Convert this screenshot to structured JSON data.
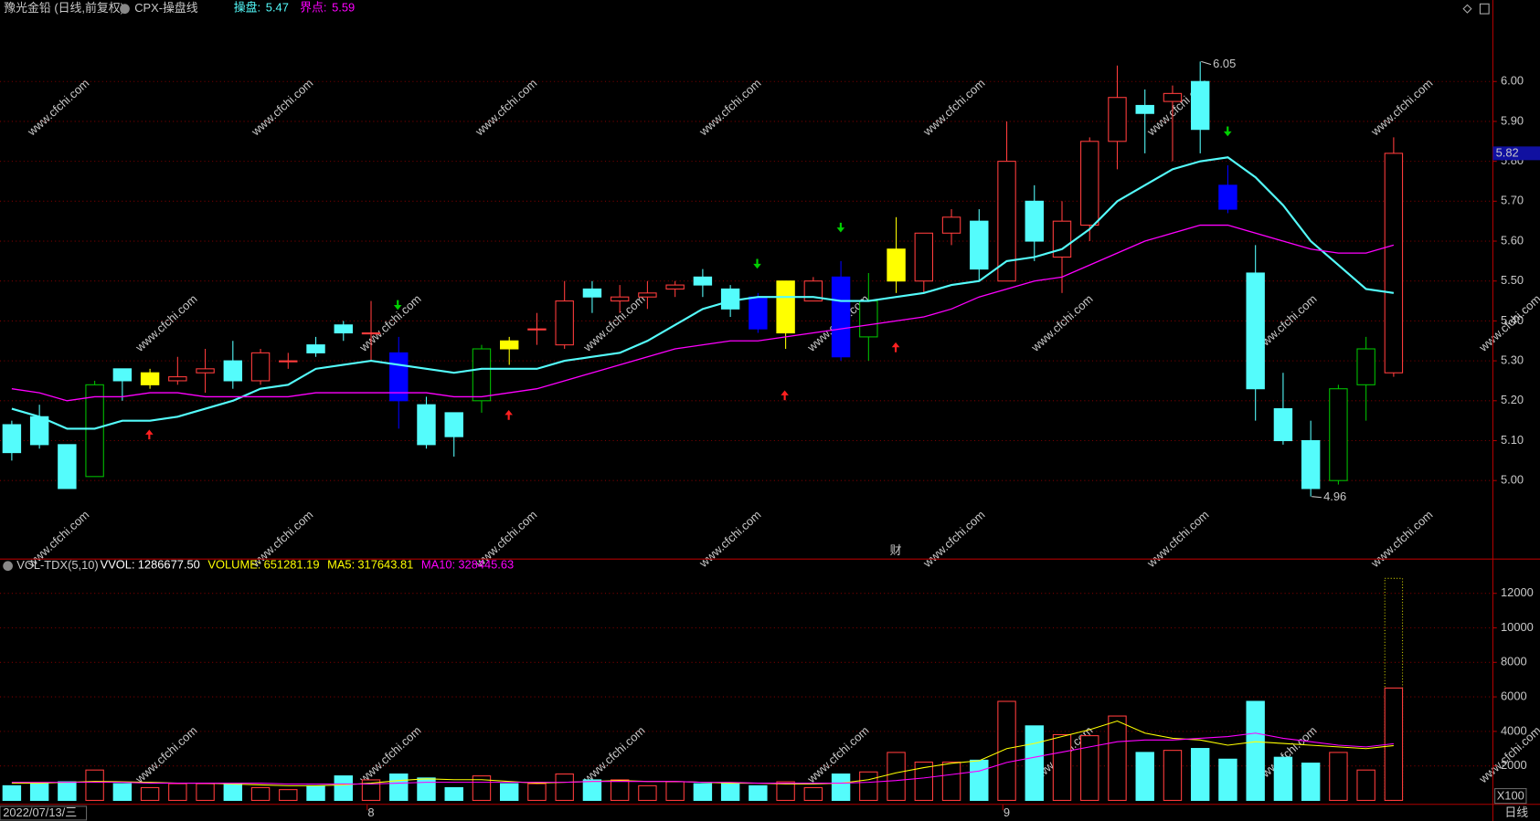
{
  "chart_data": [
    {
      "type": "candlestick",
      "title": "豫光金铅 (日线,前复权)",
      "indicator": "CPX-操盘线",
      "period": "日线",
      "marker_text": "财",
      "watermark": "www.cfchi.com",
      "categories": [
        "2022/07/13/三",
        null,
        null,
        null,
        null,
        null,
        null,
        null,
        null,
        null,
        null,
        null,
        null,
        "8",
        null,
        null,
        null,
        null,
        null,
        null,
        null,
        null,
        null,
        null,
        null,
        null,
        null,
        null,
        null,
        null,
        null,
        null,
        null,
        null,
        null,
        null,
        "9",
        null,
        null,
        null,
        null,
        null,
        null,
        null,
        null,
        null,
        null,
        null,
        null,
        null,
        null
      ],
      "open": [
        5.14,
        5.16,
        5.09,
        5.01,
        5.28,
        5.24,
        5.25,
        5.27,
        5.3,
        5.25,
        5.3,
        5.34,
        5.39,
        5.37,
        5.32,
        5.19,
        5.17,
        5.2,
        5.35,
        5.38,
        5.34,
        5.48,
        5.45,
        5.46,
        5.48,
        5.51,
        5.48,
        5.46,
        5.37,
        5.45,
        5.51,
        5.36,
        5.5,
        5.5,
        5.62,
        5.65,
        5.5,
        5.7,
        5.56,
        5.64,
        5.85,
        5.94,
        5.95,
        6.0,
        5.74,
        5.52,
        5.18,
        5.1,
        5.0,
        5.24,
        5.27
      ],
      "high": [
        5.15,
        5.19,
        5.09,
        5.25,
        5.28,
        5.28,
        5.31,
        5.33,
        5.35,
        5.33,
        5.32,
        5.36,
        5.4,
        5.45,
        5.36,
        5.21,
        5.17,
        5.34,
        5.36,
        5.42,
        5.5,
        5.5,
        5.49,
        5.5,
        5.5,
        5.53,
        5.49,
        5.47,
        5.5,
        5.51,
        5.55,
        5.52,
        5.66,
        5.62,
        5.68,
        5.68,
        5.9,
        5.74,
        5.7,
        5.86,
        6.04,
        5.98,
        5.99,
        6.05,
        5.79,
        5.59,
        5.27,
        5.15,
        5.24,
        5.36,
        5.86
      ],
      "low": [
        5.05,
        5.08,
        4.98,
        5.01,
        5.2,
        5.23,
        5.24,
        5.22,
        5.23,
        5.24,
        5.28,
        5.31,
        5.35,
        5.3,
        5.13,
        5.08,
        5.06,
        5.17,
        5.29,
        5.34,
        5.33,
        5.42,
        5.42,
        5.43,
        5.46,
        5.46,
        5.41,
        5.37,
        5.33,
        5.45,
        5.3,
        5.3,
        5.47,
        5.47,
        5.59,
        5.5,
        5.5,
        5.55,
        5.47,
        5.6,
        5.78,
        5.82,
        5.8,
        5.82,
        5.67,
        5.15,
        5.09,
        4.96,
        4.99,
        5.15,
        5.26
      ],
      "close": [
        5.07,
        5.09,
        4.98,
        5.24,
        5.25,
        5.27,
        5.26,
        5.28,
        5.25,
        5.32,
        5.3,
        5.32,
        5.37,
        5.37,
        5.2,
        5.09,
        5.11,
        5.33,
        5.33,
        5.38,
        5.45,
        5.46,
        5.46,
        5.47,
        5.49,
        5.49,
        5.43,
        5.38,
        5.5,
        5.5,
        5.31,
        5.45,
        5.58,
        5.62,
        5.66,
        5.53,
        5.8,
        5.6,
        5.65,
        5.85,
        5.96,
        5.92,
        5.97,
        5.88,
        5.68,
        5.23,
        5.1,
        4.98,
        5.23,
        5.33,
        5.82
      ],
      "colors": [
        "#54fcfc",
        "#54fcfc",
        "#54fcfc",
        "#00c000",
        "#54fcfc",
        "#ffff00",
        "#ff3c3c",
        "#ff3c3c",
        "#54fcfc",
        "#ff3c3c",
        "#ff3c3c",
        "#54fcfc",
        "#54fcfc",
        "#ff3c3c",
        "#0000ff",
        "#54fcfc",
        "#54fcfc",
        "#00c000",
        "#ffff00",
        "#ff3c3c",
        "#ff3c3c",
        "#54fcfc",
        "#ff3c3c",
        "#ff3c3c",
        "#ff3c3c",
        "#54fcfc",
        "#54fcfc",
        "#0000ff",
        "#ffff00",
        "#ff3c3c",
        "#0000ff",
        "#00c000",
        "#ffff00",
        "#ff3c3c",
        "#ff3c3c",
        "#54fcfc",
        "#ff3c3c",
        "#54fcfc",
        "#ff3c3c",
        "#ff3c3c",
        "#ff3c3c",
        "#54fcfc",
        "#ff3c3c",
        "#54fcfc",
        "#0000ff",
        "#54fcfc",
        "#54fcfc",
        "#54fcfc",
        "#00c000",
        "#00c000",
        "#ff3c3c"
      ],
      "hollow_colors": [
        "#ff3c3c",
        "#00c000"
      ],
      "series": [
        {
          "name": "操盘:",
          "color": "#54fcfc",
          "values": [
            5.18,
            5.16,
            5.13,
            5.13,
            5.15,
            5.15,
            5.16,
            5.18,
            5.2,
            5.23,
            5.24,
            5.28,
            5.29,
            5.3,
            5.29,
            5.28,
            5.27,
            5.28,
            5.28,
            5.28,
            5.3,
            5.31,
            5.32,
            5.35,
            5.39,
            5.43,
            5.45,
            5.46,
            5.46,
            5.46,
            5.45,
            5.45,
            5.46,
            5.47,
            5.49,
            5.5,
            5.55,
            5.56,
            5.58,
            5.63,
            5.7,
            5.74,
            5.78,
            5.8,
            5.81,
            5.76,
            5.69,
            5.6,
            5.54,
            5.48,
            5.47
          ]
        },
        {
          "name": "界点:",
          "color": "#ff00ff",
          "values": [
            5.23,
            5.22,
            5.2,
            5.21,
            5.21,
            5.22,
            5.22,
            5.21,
            5.21,
            5.21,
            5.21,
            5.22,
            5.22,
            5.22,
            5.22,
            5.22,
            5.21,
            5.21,
            5.22,
            5.23,
            5.25,
            5.27,
            5.29,
            5.31,
            5.33,
            5.34,
            5.35,
            5.35,
            5.36,
            5.37,
            5.38,
            5.39,
            5.4,
            5.41,
            5.43,
            5.46,
            5.48,
            5.5,
            5.51,
            5.54,
            5.57,
            5.6,
            5.62,
            5.64,
            5.64,
            5.62,
            5.6,
            5.58,
            5.57,
            5.57,
            5.59
          ]
        }
      ],
      "ylim": [
        4.84,
        6.16
      ],
      "yticks": [
        {
          "value": 5,
          "label": "5.00"
        },
        {
          "value": 5.1,
          "label": "5.10"
        },
        {
          "value": 5.2,
          "label": "5.20"
        },
        {
          "value": 5.3,
          "label": "5.30"
        },
        {
          "value": 5.4,
          "label": "5.40"
        },
        {
          "value": 5.5,
          "label": "5.50"
        },
        {
          "value": 5.6,
          "label": "5.60"
        },
        {
          "value": 5.7,
          "label": "5.70"
        },
        {
          "value": 5.8,
          "label": "5.80"
        },
        {
          "value": 5.9,
          "label": "5.90"
        },
        {
          "value": 6,
          "label": "6.00"
        }
      ],
      "grid": true
    },
    {
      "type": "bar",
      "title": "VOL-TDX(5,10)",
      "unit": "X100",
      "header": [
        {
          "label": "VVOL:",
          "value": "1286677.50",
          "color": "#ffffff"
        },
        {
          "label": "VOLUME:",
          "value": "651281.19",
          "color": "#ffff00"
        },
        {
          "label": "MA5:",
          "value": "317643.81",
          "color": "#ffff00"
        },
        {
          "label": "MA10:",
          "value": "328445.63",
          "color": "#ff00ff"
        }
      ],
      "values": [
        850,
        970,
        1080,
        1760,
        970,
        740,
        970,
        970,
        970,
        740,
        625,
        850,
        1420,
        1190,
        1530,
        1300,
        740,
        1420,
        970,
        970,
        1530,
        1190,
        1190,
        850,
        1080,
        970,
        970,
        850,
        1080,
        740,
        1530,
        1650,
        2780,
        2220,
        2220,
        2330,
        5740,
        4320,
        3810,
        3750,
        4890,
        2780,
        2900,
        3010,
        2390,
        5740,
        2500,
        2160,
        2780,
        1760,
        6512.81
      ],
      "vvol": 12866.78,
      "up_color": "#ff3c3c",
      "down_color": "#54fcfc",
      "series": [
        {
          "color": "#ffff00",
          "values": [
            1000,
            1000,
            1050,
            1100,
            1080,
            1050,
            1000,
            1000,
            950,
            900,
            850,
            850,
            900,
            1000,
            1150,
            1250,
            1200,
            1200,
            1100,
            1000,
            1050,
            1100,
            1150,
            1100,
            1100,
            1050,
            1000,
            1000,
            950,
            950,
            1000,
            1200,
            1600,
            1900,
            2150,
            2300,
            3000,
            3300,
            3700,
            4100,
            4600,
            3900,
            3600,
            3500,
            3200,
            3400,
            3300,
            3200,
            3100,
            3000,
            3176.44
          ]
        },
        {
          "color": "#ff00ff",
          "values": [
            1050,
            1050,
            1050,
            1050,
            1050,
            1000,
            1000,
            1000,
            1000,
            1000,
            950,
            950,
            950,
            950,
            1000,
            1050,
            1050,
            1050,
            1050,
            1050,
            1050,
            1100,
            1100,
            1100,
            1100,
            1050,
            1050,
            1000,
            1000,
            1000,
            1000,
            1050,
            1150,
            1300,
            1500,
            1700,
            2200,
            2500,
            2800,
            3100,
            3400,
            3500,
            3500,
            3600,
            3700,
            3900,
            3600,
            3400,
            3200,
            3100,
            3284.46
          ]
        }
      ],
      "ylim": [
        0,
        13700
      ],
      "yticks": [
        2000,
        4000,
        6000,
        8000,
        10000,
        12000
      ],
      "grid": true
    }
  ]
}
